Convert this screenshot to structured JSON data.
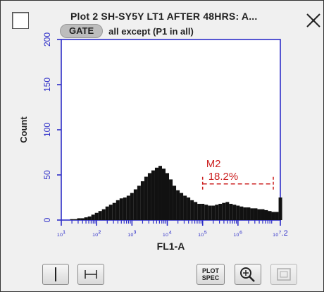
{
  "window": {
    "title": "Plot 2 SH-SY5Y LT1 AFTER 48HRS: A...",
    "gate_label": "GATE",
    "gate_value": "all except (P1 in all)"
  },
  "colors": {
    "axis": "#2d2dc8",
    "histogram": "#111111",
    "marker": "#cc2222"
  },
  "chart_data": {
    "type": "area",
    "xlabel": "FL1-A",
    "ylabel": "Count",
    "x_scale": "log",
    "xlim": [
      10,
      15800000
    ],
    "ylim": [
      0,
      200
    ],
    "x_ticks": [
      {
        "label": "₁₀¹",
        "value": 10
      },
      {
        "label": "₁₀²",
        "value": 100
      },
      {
        "label": "₁₀³",
        "value": 1000
      },
      {
        "label": "₁₀⁴",
        "value": 10000
      },
      {
        "label": "₁₀⁵",
        "value": 100000
      },
      {
        "label": "₁₀⁶",
        "value": 1000000
      },
      {
        "label": "₁₀⁷.2",
        "value": 15800000
      }
    ],
    "y_ticks": [
      0,
      50,
      100,
      150,
      200
    ],
    "log_x": [
      1.0,
      1.1,
      1.2,
      1.3,
      1.4,
      1.5,
      1.6,
      1.7,
      1.8,
      1.9,
      2.0,
      2.1,
      2.2,
      2.3,
      2.4,
      2.5,
      2.6,
      2.7,
      2.8,
      2.9,
      3.0,
      3.1,
      3.2,
      3.3,
      3.4,
      3.5,
      3.6,
      3.7,
      3.8,
      3.9,
      4.0,
      4.1,
      4.2,
      4.3,
      4.4,
      4.5,
      4.6,
      4.7,
      4.8,
      4.9,
      5.0,
      5.1,
      5.2,
      5.3,
      5.4,
      5.5,
      5.6,
      5.7,
      5.8,
      5.9,
      6.0,
      6.1,
      6.2,
      6.3,
      6.4,
      6.5,
      6.6,
      6.7,
      6.8,
      6.9,
      7.0,
      7.1,
      7.2
    ],
    "counts": [
      0,
      0,
      0,
      1,
      1,
      2,
      2,
      3,
      4,
      6,
      8,
      10,
      12,
      15,
      17,
      19,
      22,
      24,
      25,
      27,
      30,
      34,
      38,
      43,
      48,
      52,
      55,
      58,
      60,
      57,
      52,
      45,
      38,
      33,
      30,
      27,
      25,
      22,
      20,
      18,
      18,
      17,
      16,
      16,
      17,
      18,
      19,
      20,
      18,
      17,
      16,
      15,
      14,
      14,
      13,
      13,
      12,
      12,
      11,
      10,
      9,
      9,
      25
    ],
    "marker": {
      "name": "M2",
      "percent": "18.2%",
      "range": [
        100000,
        10000000
      ],
      "level": 40
    }
  },
  "toolbar": {
    "plotspec_line1": "PLOT",
    "plotspec_line2": "SPEC"
  }
}
